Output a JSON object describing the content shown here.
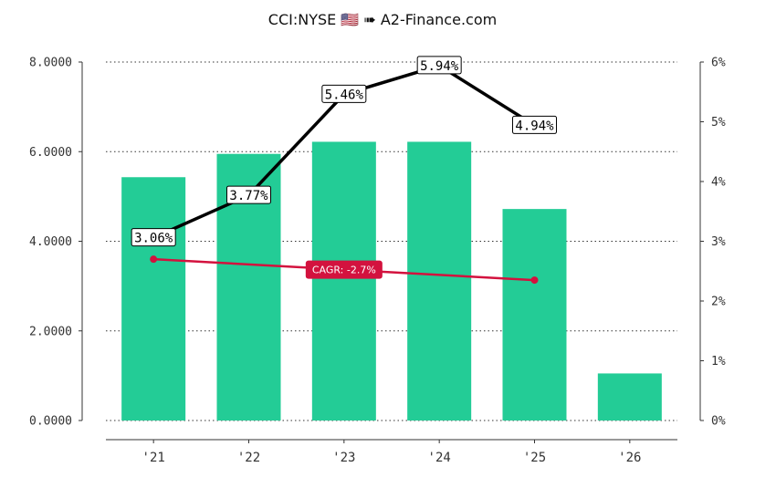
{
  "title": "CCI:NYSE 🇺🇸 ➠ A2-Finance.com",
  "chart_data": {
    "type": "bar",
    "categories": [
      "'21",
      "'22",
      "'23",
      "'24",
      "'25",
      "'26"
    ],
    "bar_values": [
      5.43,
      5.95,
      6.22,
      6.22,
      4.72,
      1.05
    ],
    "left_axis": {
      "ylim": [
        0,
        8
      ],
      "ticks": [
        0,
        2,
        4,
        6,
        8
      ],
      "tick_labels": [
        "0.0000",
        "2.0000",
        "4.0000",
        "6.0000",
        "8.0000"
      ]
    },
    "right_axis": {
      "ylim": [
        0,
        6
      ],
      "ticks": [
        0,
        1,
        2,
        3,
        4,
        5,
        6
      ],
      "tick_labels": [
        "0%",
        "1%",
        "2%",
        "3%",
        "4%",
        "5%",
        "6%"
      ]
    },
    "yield_series": {
      "categories": [
        "'21",
        "'22",
        "'23",
        "'24",
        "'25"
      ],
      "values": [
        3.06,
        3.77,
        5.46,
        5.94,
        4.94
      ],
      "labels": [
        "3.06%",
        "3.77%",
        "5.46%",
        "5.94%",
        "4.94%"
      ]
    },
    "cagr": {
      "label": "CAGR: -2.7%",
      "start_category": "'21",
      "end_category": "'25",
      "start_value": 2.7,
      "end_value": 2.35
    },
    "grid": true,
    "colors": {
      "bar": "#23cc96",
      "yield_line": "#000000",
      "cagr": "#d3123e"
    }
  }
}
